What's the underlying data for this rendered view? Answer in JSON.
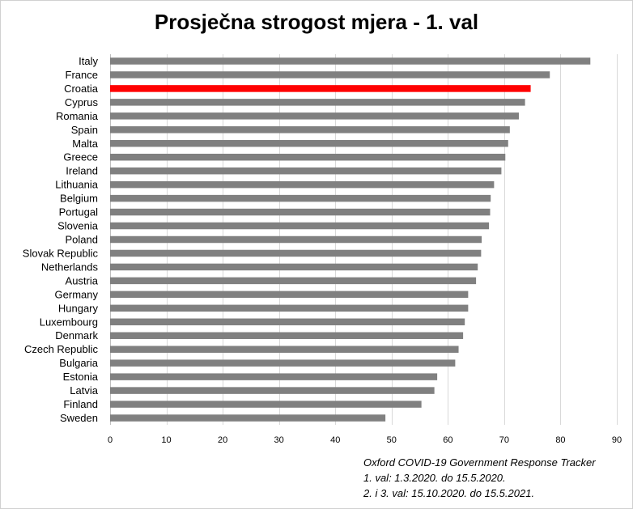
{
  "chart_data": {
    "type": "bar",
    "orientation": "horizontal",
    "title": "Prosječna strogost mjera - 1. val",
    "categories": [
      "Italy",
      "France",
      "Croatia",
      "Cyprus",
      "Romania",
      "Spain",
      "Malta",
      "Greece",
      "Ireland",
      "Lithuania",
      "Belgium",
      "Portugal",
      "Slovenia",
      "Poland",
      "Slovak Republic",
      "Netherlands",
      "Austria",
      "Germany",
      "Hungary",
      "Luxembourg",
      "Denmark",
      "Czech Republic",
      "Bulgaria",
      "Estonia",
      "Latvia",
      "Finland",
      "Sweden"
    ],
    "values": [
      85.3,
      78.1,
      74.7,
      73.7,
      72.6,
      71.0,
      70.7,
      70.2,
      69.5,
      68.2,
      67.6,
      67.5,
      67.3,
      66.0,
      65.9,
      65.3,
      65.0,
      63.6,
      63.6,
      63.0,
      62.7,
      61.9,
      61.3,
      58.1,
      57.6,
      55.3,
      48.9
    ],
    "bar_colors": {
      "default": "#808080",
      "highlight": "#ff0000"
    },
    "highlight": "Croatia",
    "xlim": [
      0,
      90
    ],
    "xticks": [
      0,
      10,
      20,
      30,
      40,
      50,
      60,
      70,
      80,
      90
    ],
    "grid": "vertical",
    "grid_color": "#d9d9d9",
    "xlabel": "",
    "ylabel": ""
  },
  "source_lines": [
    "Oxford COVID-19 Government Response Tracker",
    "1. val: 1.3.2020. do 15.5.2020.",
    "2. i 3. val: 15.10.2020. do 15.5.2021."
  ]
}
